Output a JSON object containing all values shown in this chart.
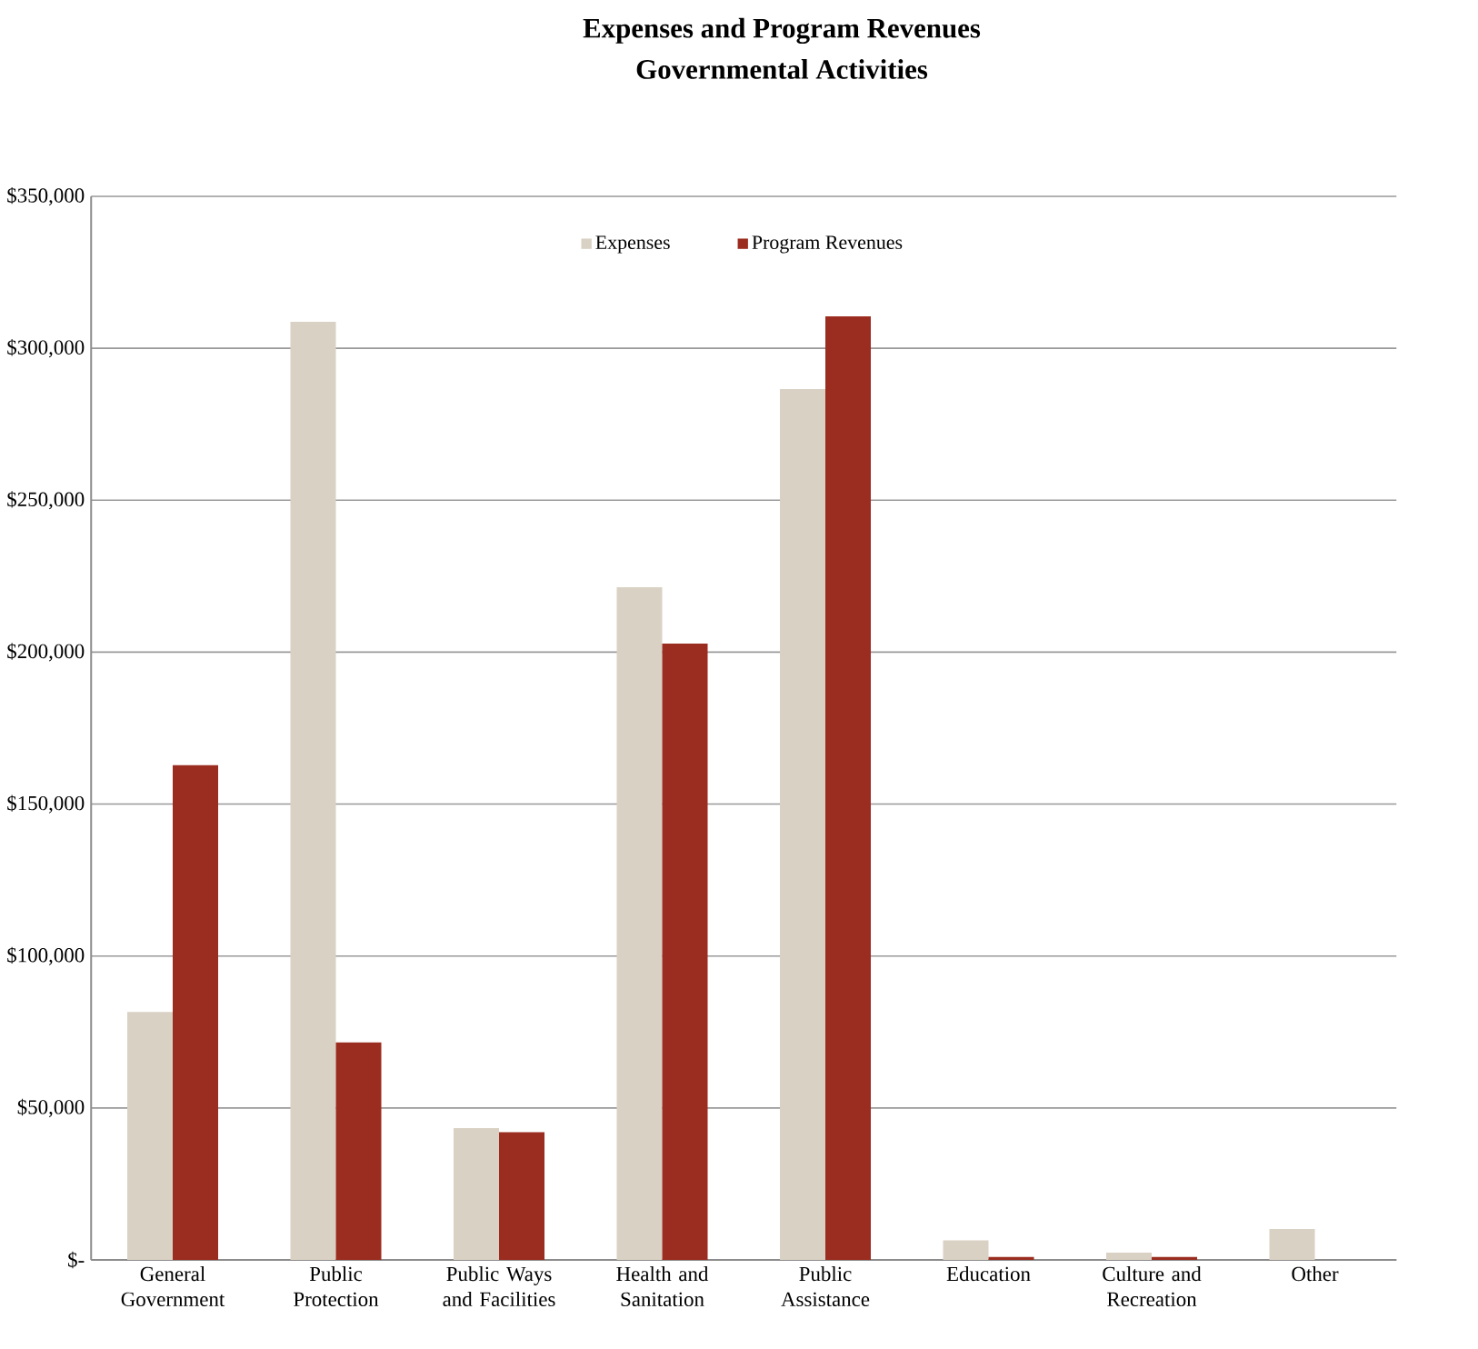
{
  "chart_data": {
    "type": "bar",
    "title": "Expenses and Program Revenues",
    "subtitle": "Governmental Activities",
    "categories": [
      "General Government",
      "Public Protection",
      "Public Ways and Facilities",
      "Health and Sanitation",
      "Public Assistance",
      "Education",
      "Culture and Recreation",
      "Other"
    ],
    "series": [
      {
        "name": "Expenses",
        "color": "#d9d1c3",
        "values": [
          81600,
          308700,
          43400,
          221400,
          286600,
          6400,
          2400,
          10200
        ]
      },
      {
        "name": "Program Revenues",
        "color": "#9b2d20",
        "values": [
          162800,
          71600,
          42000,
          202800,
          310500,
          1000,
          1000,
          0
        ]
      }
    ],
    "ylim": [
      0,
      350000
    ],
    "yticks": [
      {
        "value": 0,
        "label": "$-"
      },
      {
        "value": 50000,
        "label": "$50,000"
      },
      {
        "value": 100000,
        "label": "$100,000"
      },
      {
        "value": 150000,
        "label": "$150,000"
      },
      {
        "value": 200000,
        "label": "$200,000"
      },
      {
        "value": 250000,
        "label": "$250,000"
      },
      {
        "value": 300000,
        "label": "$300,000"
      },
      {
        "value": 350000,
        "label": "$350,000"
      }
    ],
    "grid": "y",
    "legend": "top"
  }
}
